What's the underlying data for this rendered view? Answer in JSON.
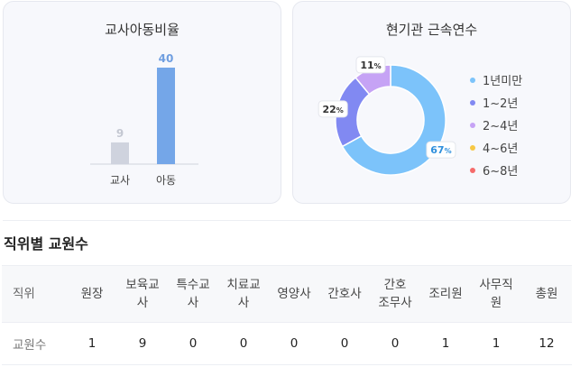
{
  "charts": {
    "ratio": {
      "title": "교사아동비율",
      "labels": [
        "교사",
        "아동"
      ],
      "values": [
        9,
        40
      ],
      "colors": [
        "#cfd3de",
        "#74a6e8"
      ],
      "value_colors": [
        "#c4c8d2",
        "#6f9ee0"
      ]
    },
    "tenure": {
      "title": "현기관 근속연수",
      "legend": [
        "1년미만",
        "1~2년",
        "2~4년",
        "4~6년",
        "6~8년"
      ],
      "colors": [
        "#7cc3fa",
        "#8189f2",
        "#c6a3f5",
        "#f7c845",
        "#f56b6b"
      ],
      "unit": "%"
    }
  },
  "chart_data": [
    {
      "type": "bar",
      "title": "교사아동비율",
      "categories": [
        "교사",
        "아동"
      ],
      "values": [
        9,
        40
      ],
      "ylim": [
        0,
        40
      ]
    },
    {
      "type": "pie",
      "title": "현기관 근속연수",
      "categories": [
        "1년미만",
        "1~2년",
        "2~4년",
        "4~6년",
        "6~8년"
      ],
      "values": [
        67,
        22,
        11,
        0,
        0
      ],
      "legend": "right"
    }
  ],
  "section": {
    "title": "직위별 교원수"
  },
  "table": {
    "headers": [
      "직위",
      "원장",
      "보육교\n사",
      "특수교\n사",
      "치료교\n사",
      "영양사",
      "간호사",
      "간호\n조무사",
      "조리원",
      "사무직\n원",
      "총원"
    ],
    "row": [
      "교원수",
      "1",
      "9",
      "0",
      "0",
      "0",
      "0",
      "0",
      "1",
      "1",
      "12"
    ]
  }
}
